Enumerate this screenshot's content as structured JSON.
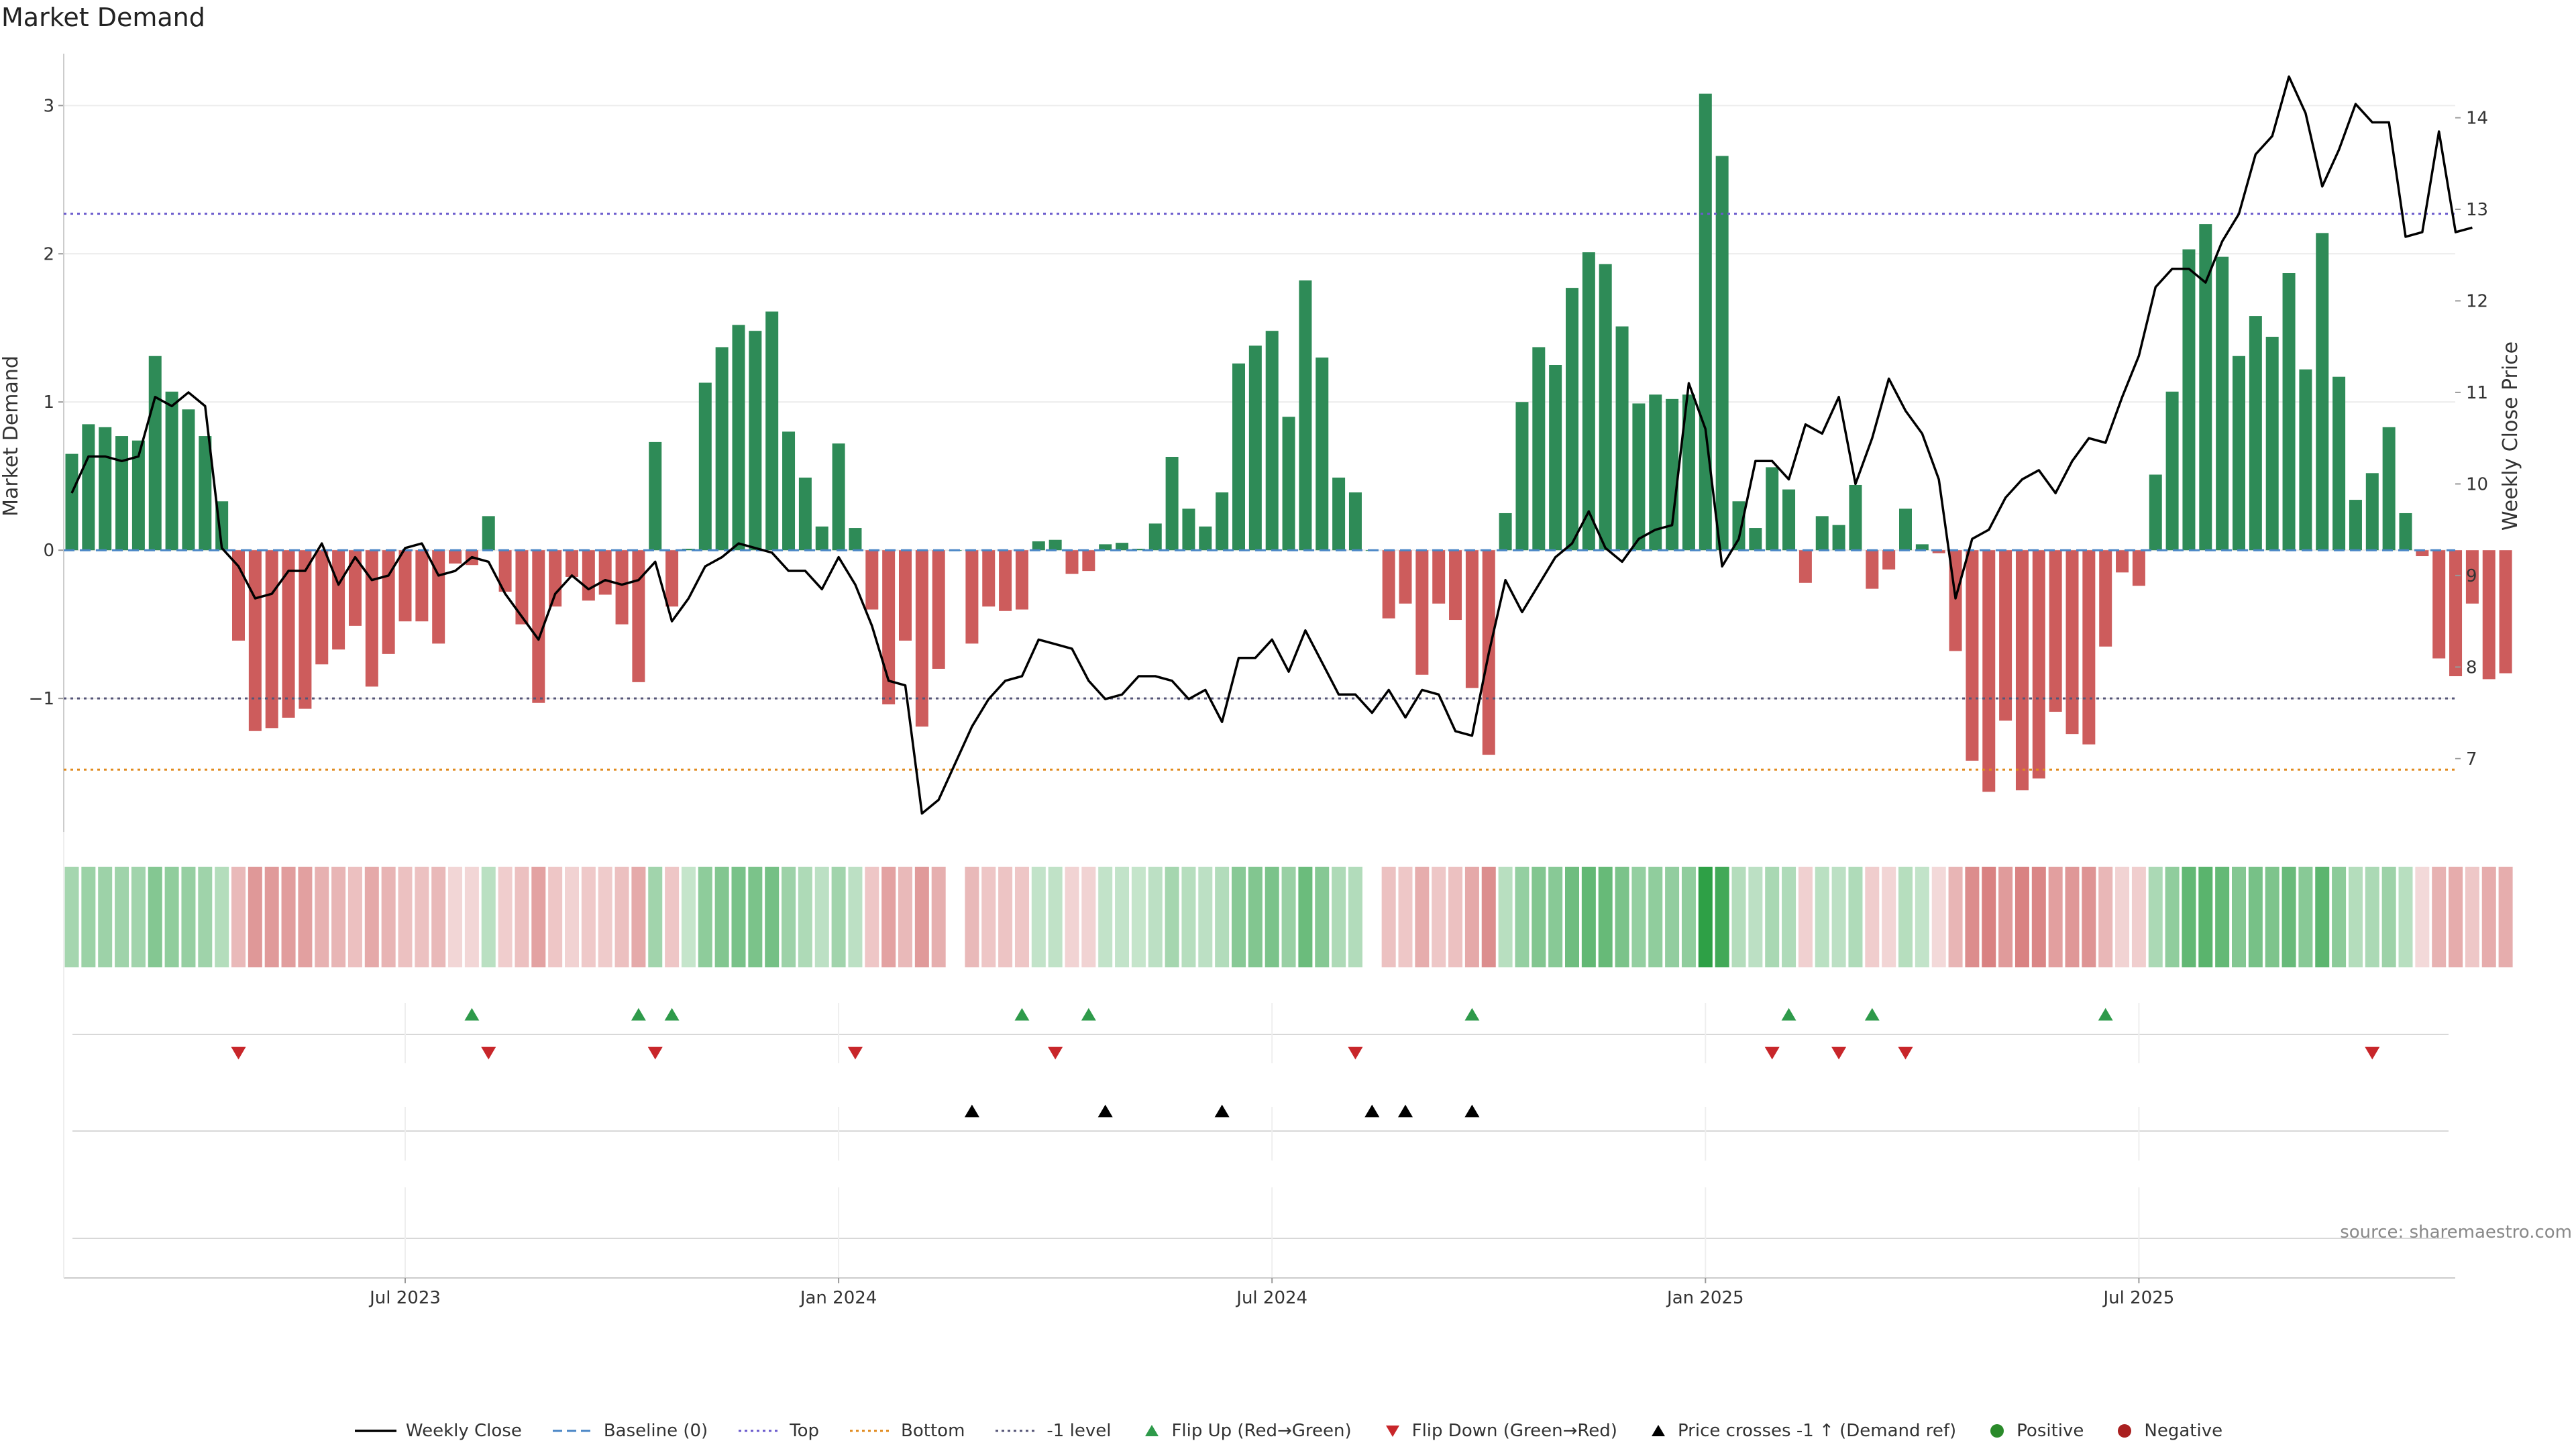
{
  "title": "Market Demand",
  "source": "source: sharemaestro.com",
  "axes": {
    "left_label": "Market Demand",
    "right_label": "Weekly Close Price",
    "left_ticks": [
      "3",
      "2",
      "1",
      "0",
      "−1"
    ],
    "right_ticks": [
      "14",
      "13",
      "12",
      "11",
      "10",
      "9",
      "8",
      "7"
    ],
    "x_ticks": [
      "Jul 2023",
      "Jan 2024",
      "Jul 2024",
      "Jan 2025",
      "Jul 2025"
    ]
  },
  "legend": {
    "items": [
      {
        "label": "Weekly Close",
        "kind": "line",
        "color": "#000000"
      },
      {
        "label": "Baseline (0)",
        "kind": "dash",
        "color": "#4a86c6"
      },
      {
        "label": "Top",
        "kind": "dot",
        "color": "#6a5acd"
      },
      {
        "label": "Bottom",
        "kind": "dot",
        "color": "#e08a1e"
      },
      {
        "label": "-1 level",
        "kind": "dot",
        "color": "#555577"
      },
      {
        "label": "Flip Up (Red→Green)",
        "kind": "tri-up",
        "color": "#2e9a4a"
      },
      {
        "label": "Flip Down (Green→Red)",
        "kind": "tri-down",
        "color": "#c8262a"
      },
      {
        "label": "Price crosses -1 ↑ (Demand ref)",
        "kind": "tri-up",
        "color": "#000000"
      },
      {
        "label": "Positive",
        "kind": "circle",
        "color": "#2a8a2a"
      },
      {
        "label": "Negative",
        "kind": "circle",
        "color": "#aa2020"
      }
    ]
  },
  "chart_data": {
    "type": "bar",
    "title": "Market Demand",
    "xlabel": "",
    "ylabel": "Market Demand",
    "y2label": "Weekly Close Price",
    "ylim": [
      -1.9,
      3.35
    ],
    "y2lim": [
      6.2,
      14.7
    ],
    "reference_lines": {
      "baseline": 0,
      "top": 2.27,
      "bottom": -1.48,
      "minus_one": -1
    },
    "x_ticks": [
      {
        "label": "Jul 2023",
        "week": 20
      },
      {
        "label": "Jan 2024",
        "week": 46
      },
      {
        "label": "Jul 2024",
        "week": 72
      },
      {
        "label": "Jan 2025",
        "week": 98
      },
      {
        "label": "Jul 2025",
        "week": 124
      }
    ],
    "colors": {
      "positive": "#2e8b57",
      "negative": "#cd5c5c",
      "price": "#000000",
      "baseline": "#4a86c6",
      "top": "#6a5acd",
      "bottom": "#e08a1e",
      "minus_one": "#555577",
      "flip_up": "#2e9a4a",
      "flip_down": "#c8262a",
      "cross": "#000000"
    },
    "series": [
      {
        "name": "Market Demand",
        "values": [
          0.65,
          0.85,
          0.83,
          0.77,
          0.74,
          1.31,
          1.07,
          0.95,
          0.77,
          0.33,
          -0.61,
          -1.22,
          -1.2,
          -1.13,
          -1.07,
          -0.77,
          -0.67,
          -0.51,
          -0.92,
          -0.7,
          -0.48,
          -0.48,
          -0.63,
          -0.09,
          -0.1,
          0.23,
          -0.28,
          -0.5,
          -1.03,
          -0.38,
          -0.18,
          -0.34,
          -0.3,
          -0.5,
          -0.89,
          0.73,
          -0.38,
          0.01,
          1.13,
          1.37,
          1.52,
          1.48,
          1.61,
          0.8,
          0.49,
          0.16,
          0.72,
          0.15,
          -0.4,
          -1.04,
          -0.61,
          -1.19,
          -0.8,
          0.0,
          -0.63,
          -0.38,
          -0.41,
          -0.4,
          0.06,
          0.07,
          -0.16,
          -0.14,
          0.04,
          0.05,
          0.01,
          0.18,
          0.63,
          0.28,
          0.16,
          0.39,
          1.26,
          1.38,
          1.48,
          0.9,
          1.82,
          1.3,
          0.49,
          0.39,
          0.0,
          -0.46,
          -0.36,
          -0.84,
          -0.36,
          -0.47,
          -0.93,
          -1.38,
          0.25,
          1.0,
          1.37,
          1.25,
          1.77,
          2.01,
          1.93,
          1.51,
          0.99,
          1.05,
          1.02,
          1.05,
          3.08,
          2.66,
          0.33,
          0.15,
          0.56,
          0.41,
          -0.22,
          0.23,
          0.17,
          0.44,
          -0.26,
          -0.13,
          0.28,
          0.04,
          -0.02,
          -0.68,
          -1.42,
          -1.63,
          -1.15,
          -1.62,
          -1.54,
          -1.09,
          -1.24,
          -1.31,
          -0.65,
          -0.15,
          -0.24,
          0.51,
          1.07,
          2.03,
          2.2,
          1.98,
          1.31,
          1.58,
          1.44,
          1.87,
          1.22,
          2.14,
          1.17,
          0.34,
          0.52,
          0.83,
          0.25,
          -0.04,
          -0.73,
          -0.85,
          -0.36,
          -0.87,
          -0.83
        ]
      },
      {
        "name": "Weekly Close",
        "values": [
          9.9,
          10.3,
          10.3,
          10.25,
          10.3,
          10.95,
          10.85,
          11.0,
          10.85,
          9.3,
          9.1,
          8.75,
          8.8,
          9.05,
          9.05,
          9.35,
          8.9,
          9.2,
          8.95,
          9.0,
          9.3,
          9.35,
          9.0,
          9.05,
          9.2,
          9.15,
          8.8,
          8.55,
          8.3,
          8.8,
          9.0,
          8.85,
          8.95,
          8.9,
          8.95,
          9.15,
          8.5,
          8.75,
          9.1,
          9.2,
          9.35,
          9.3,
          9.25,
          9.05,
          9.05,
          8.85,
          9.2,
          8.9,
          8.45,
          7.85,
          7.8,
          6.4,
          6.55,
          6.95,
          7.35,
          7.65,
          7.85,
          7.9,
          8.3,
          8.25,
          8.2,
          7.85,
          7.65,
          7.7,
          7.9,
          7.9,
          7.85,
          7.65,
          7.75,
          7.4,
          8.1,
          8.1,
          8.3,
          7.95,
          8.4,
          8.05,
          7.7,
          7.7,
          7.5,
          7.75,
          7.45,
          7.75,
          7.7,
          7.3,
          7.25,
          8.15,
          8.95,
          8.6,
          8.9,
          9.2,
          9.35,
          9.7,
          9.3,
          9.15,
          9.4,
          9.5,
          9.55,
          11.1,
          10.6,
          9.1,
          9.4,
          10.25,
          10.25,
          10.05,
          10.65,
          10.55,
          10.95,
          10.0,
          10.5,
          11.15,
          10.8,
          10.55,
          10.05,
          8.75,
          9.4,
          9.5,
          9.85,
          10.05,
          10.15,
          9.9,
          10.25,
          10.5,
          10.45,
          10.95,
          11.4,
          12.15,
          12.35,
          12.35,
          12.2,
          12.65,
          12.95,
          13.6,
          13.8,
          14.45,
          14.05,
          13.25,
          13.65,
          14.15,
          13.95,
          13.95,
          12.7,
          12.75,
          13.85,
          12.75,
          12.8
        ]
      },
      {
        "name": "Demand Heat",
        "values": "same as Market Demand"
      }
    ],
    "flip_up_weeks": [
      24,
      34,
      36,
      57,
      61,
      84,
      103,
      108,
      122
    ],
    "flip_down_weeks": [
      10,
      25,
      35,
      47,
      59,
      77,
      102,
      106,
      110,
      138
    ],
    "price_cross_weeks": [
      54,
      62,
      69,
      78,
      80,
      84
    ]
  }
}
